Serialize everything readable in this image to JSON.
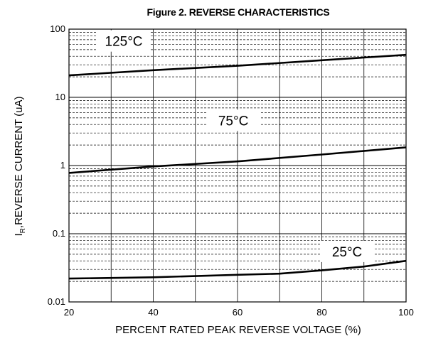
{
  "chart_data": {
    "type": "line",
    "title": "Figure 2. REVERSE CHARACTERISTICS",
    "xlabel": "PERCENT RATED PEAK REVERSE VOLTAGE (%)",
    "ylabel": {
      "prefix": "I",
      "subscript": "R",
      "rest": ",REVERSE CURRENT (uA)"
    },
    "xlim": [
      20,
      100
    ],
    "ylim": [
      0.01,
      100
    ],
    "yscale": "log",
    "grid": true,
    "x_ticks": [
      "20",
      "40",
      "60",
      "80",
      "100"
    ],
    "y_ticks": [
      "0.01",
      "0.1",
      "1",
      "10",
      "100"
    ],
    "series": [
      {
        "name": "125°C",
        "x": [
          20,
          40,
          60,
          80,
          100
        ],
        "y": [
          21,
          25,
          29,
          35,
          42
        ]
      },
      {
        "name": "75°C",
        "x": [
          20,
          40,
          60,
          80,
          100
        ],
        "y": [
          0.78,
          0.97,
          1.15,
          1.45,
          1.85
        ]
      },
      {
        "name": "25°C",
        "x": [
          20,
          40,
          60,
          70,
          80,
          90,
          100
        ],
        "y": [
          0.022,
          0.023,
          0.025,
          0.026,
          0.029,
          0.033,
          0.04
        ]
      }
    ],
    "colors": {
      "line": "#000000",
      "grid": "#000000"
    }
  }
}
